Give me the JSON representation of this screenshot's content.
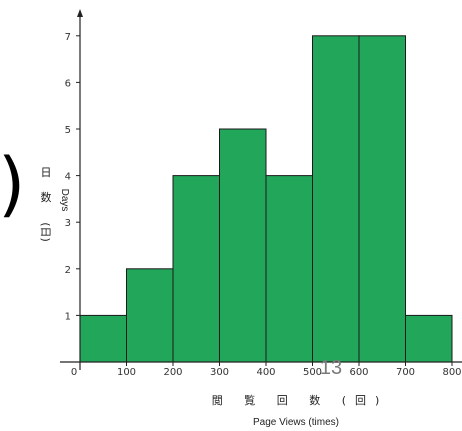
{
  "chart_data": {
    "type": "bar",
    "bins": [
      {
        "start": 0,
        "end": 100,
        "value": 1
      },
      {
        "start": 100,
        "end": 200,
        "value": 2
      },
      {
        "start": 200,
        "end": 300,
        "value": 4
      },
      {
        "start": 300,
        "end": 400,
        "value": 5
      },
      {
        "start": 400,
        "end": 500,
        "value": 4
      },
      {
        "start": 500,
        "end": 600,
        "value": 7
      },
      {
        "start": 600,
        "end": 700,
        "value": 7
      },
      {
        "start": 700,
        "end": 800,
        "value": 1
      }
    ],
    "x_ticks": [
      "0",
      "100",
      "200",
      "300",
      "400",
      "500",
      "600",
      "700",
      "800"
    ],
    "y_ticks": [
      "1",
      "2",
      "3",
      "4",
      "5",
      "6",
      "7"
    ],
    "xlim": [
      0,
      800
    ],
    "ylim": [
      0,
      7.5
    ],
    "xlabel_jp": "閲 覧 回 数 (回)",
    "xlabel": "Page Views (times)",
    "ylabel_jp": [
      "日",
      "数",
      "(日)"
    ],
    "ylabel": "Days",
    "bar_color": "#21a65a",
    "grid": false
  },
  "overlay": {
    "page_number": "13",
    "bracket": ")"
  }
}
